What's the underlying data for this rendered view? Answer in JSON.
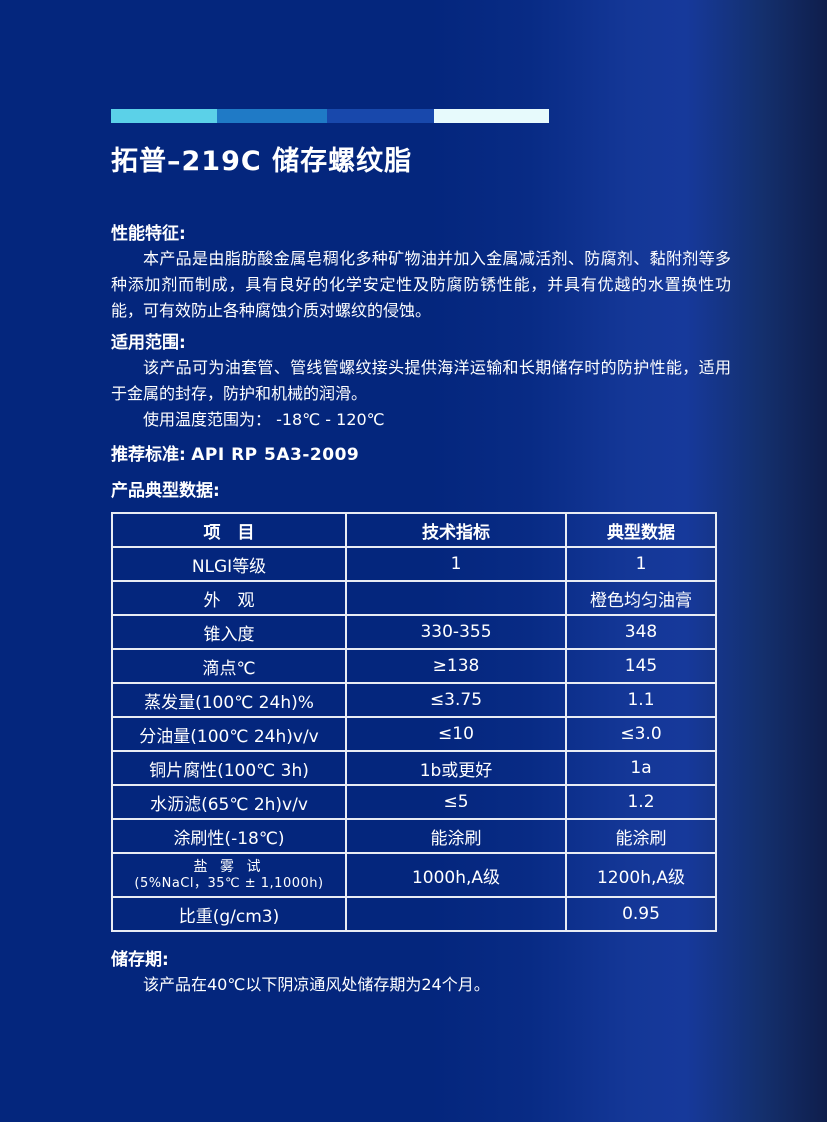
{
  "page": {
    "background_base": "#04267d",
    "background_right_dark": "#0f1e4c",
    "text_color": "#ffffff",
    "table_border_color": "#e8ecf4"
  },
  "decor_bar": {
    "segment_colors": [
      "#5bd1e8",
      "#1f7ac6",
      "#1848ac",
      "#e7fafc"
    ]
  },
  "title": "拓普–219C 储存螺纹脂",
  "sections": {
    "performance": {
      "heading": "性能特征:",
      "body": "本产品是由脂肪酸金属皂稠化多种矿物油并加入金属减活剂、防腐剂、黏附剂等多种添加剂而制成，具有良好的化学安定性及防腐防锈性能，并具有优越的水置换性功能，可有效防止各种腐蚀介质对螺纹的侵蚀。"
    },
    "application": {
      "heading": "适用范围:",
      "body": "该产品可为油套管、管线管螺纹接头提供海洋运输和长期储存时的防护性能，适用于金属的封存，防护和机械的润滑。",
      "temperature_line": "使用温度范围为： -18℃ - 120℃"
    },
    "standard": {
      "label": "推荐标准:",
      "value": "API RP 5A3-2009"
    },
    "table_heading": "产品典型数据:",
    "storage": {
      "heading": "储存期:",
      "body": "该产品在40℃以下阴凉通风处储存期为24个月。"
    }
  },
  "table": {
    "headers": {
      "item": "项　目",
      "spec": "技术指标",
      "typical": "典型数据"
    },
    "rows": [
      {
        "item": "NLGI等级",
        "spec": "1",
        "typical": "1"
      },
      {
        "item": "外　观",
        "spec": "",
        "typical": "橙色均匀油膏"
      },
      {
        "item": "锥入度",
        "spec": "330-355",
        "typical": "348"
      },
      {
        "item": "滴点℃",
        "spec": "≥138",
        "typical": "145"
      },
      {
        "item": "蒸发量(100℃ 24h)%",
        "spec": "≤3.75",
        "typical": "1.1"
      },
      {
        "item": "分油量(100℃ 24h)v/v",
        "spec": "≤10",
        "typical": "≤3.0"
      },
      {
        "item": "铜片腐性(100℃ 3h)",
        "spec": "1b或更好",
        "typical": "1a"
      },
      {
        "item": "水沥滤(65℃ 2h)v/v",
        "spec": "≤5",
        "typical": "1.2"
      },
      {
        "item": "涂刷性(-18℃)",
        "spec": "能涂刷",
        "typical": "能涂刷"
      },
      {
        "item_line1": "盐 雾 试",
        "item_line2": "(5%NaCl，35℃ ± 1,1000h)",
        "spec": "1000h,A级",
        "typical": "1200h,A级"
      },
      {
        "item": "比重(g/cm3)",
        "spec": "",
        "typical": "0.95"
      }
    ]
  }
}
